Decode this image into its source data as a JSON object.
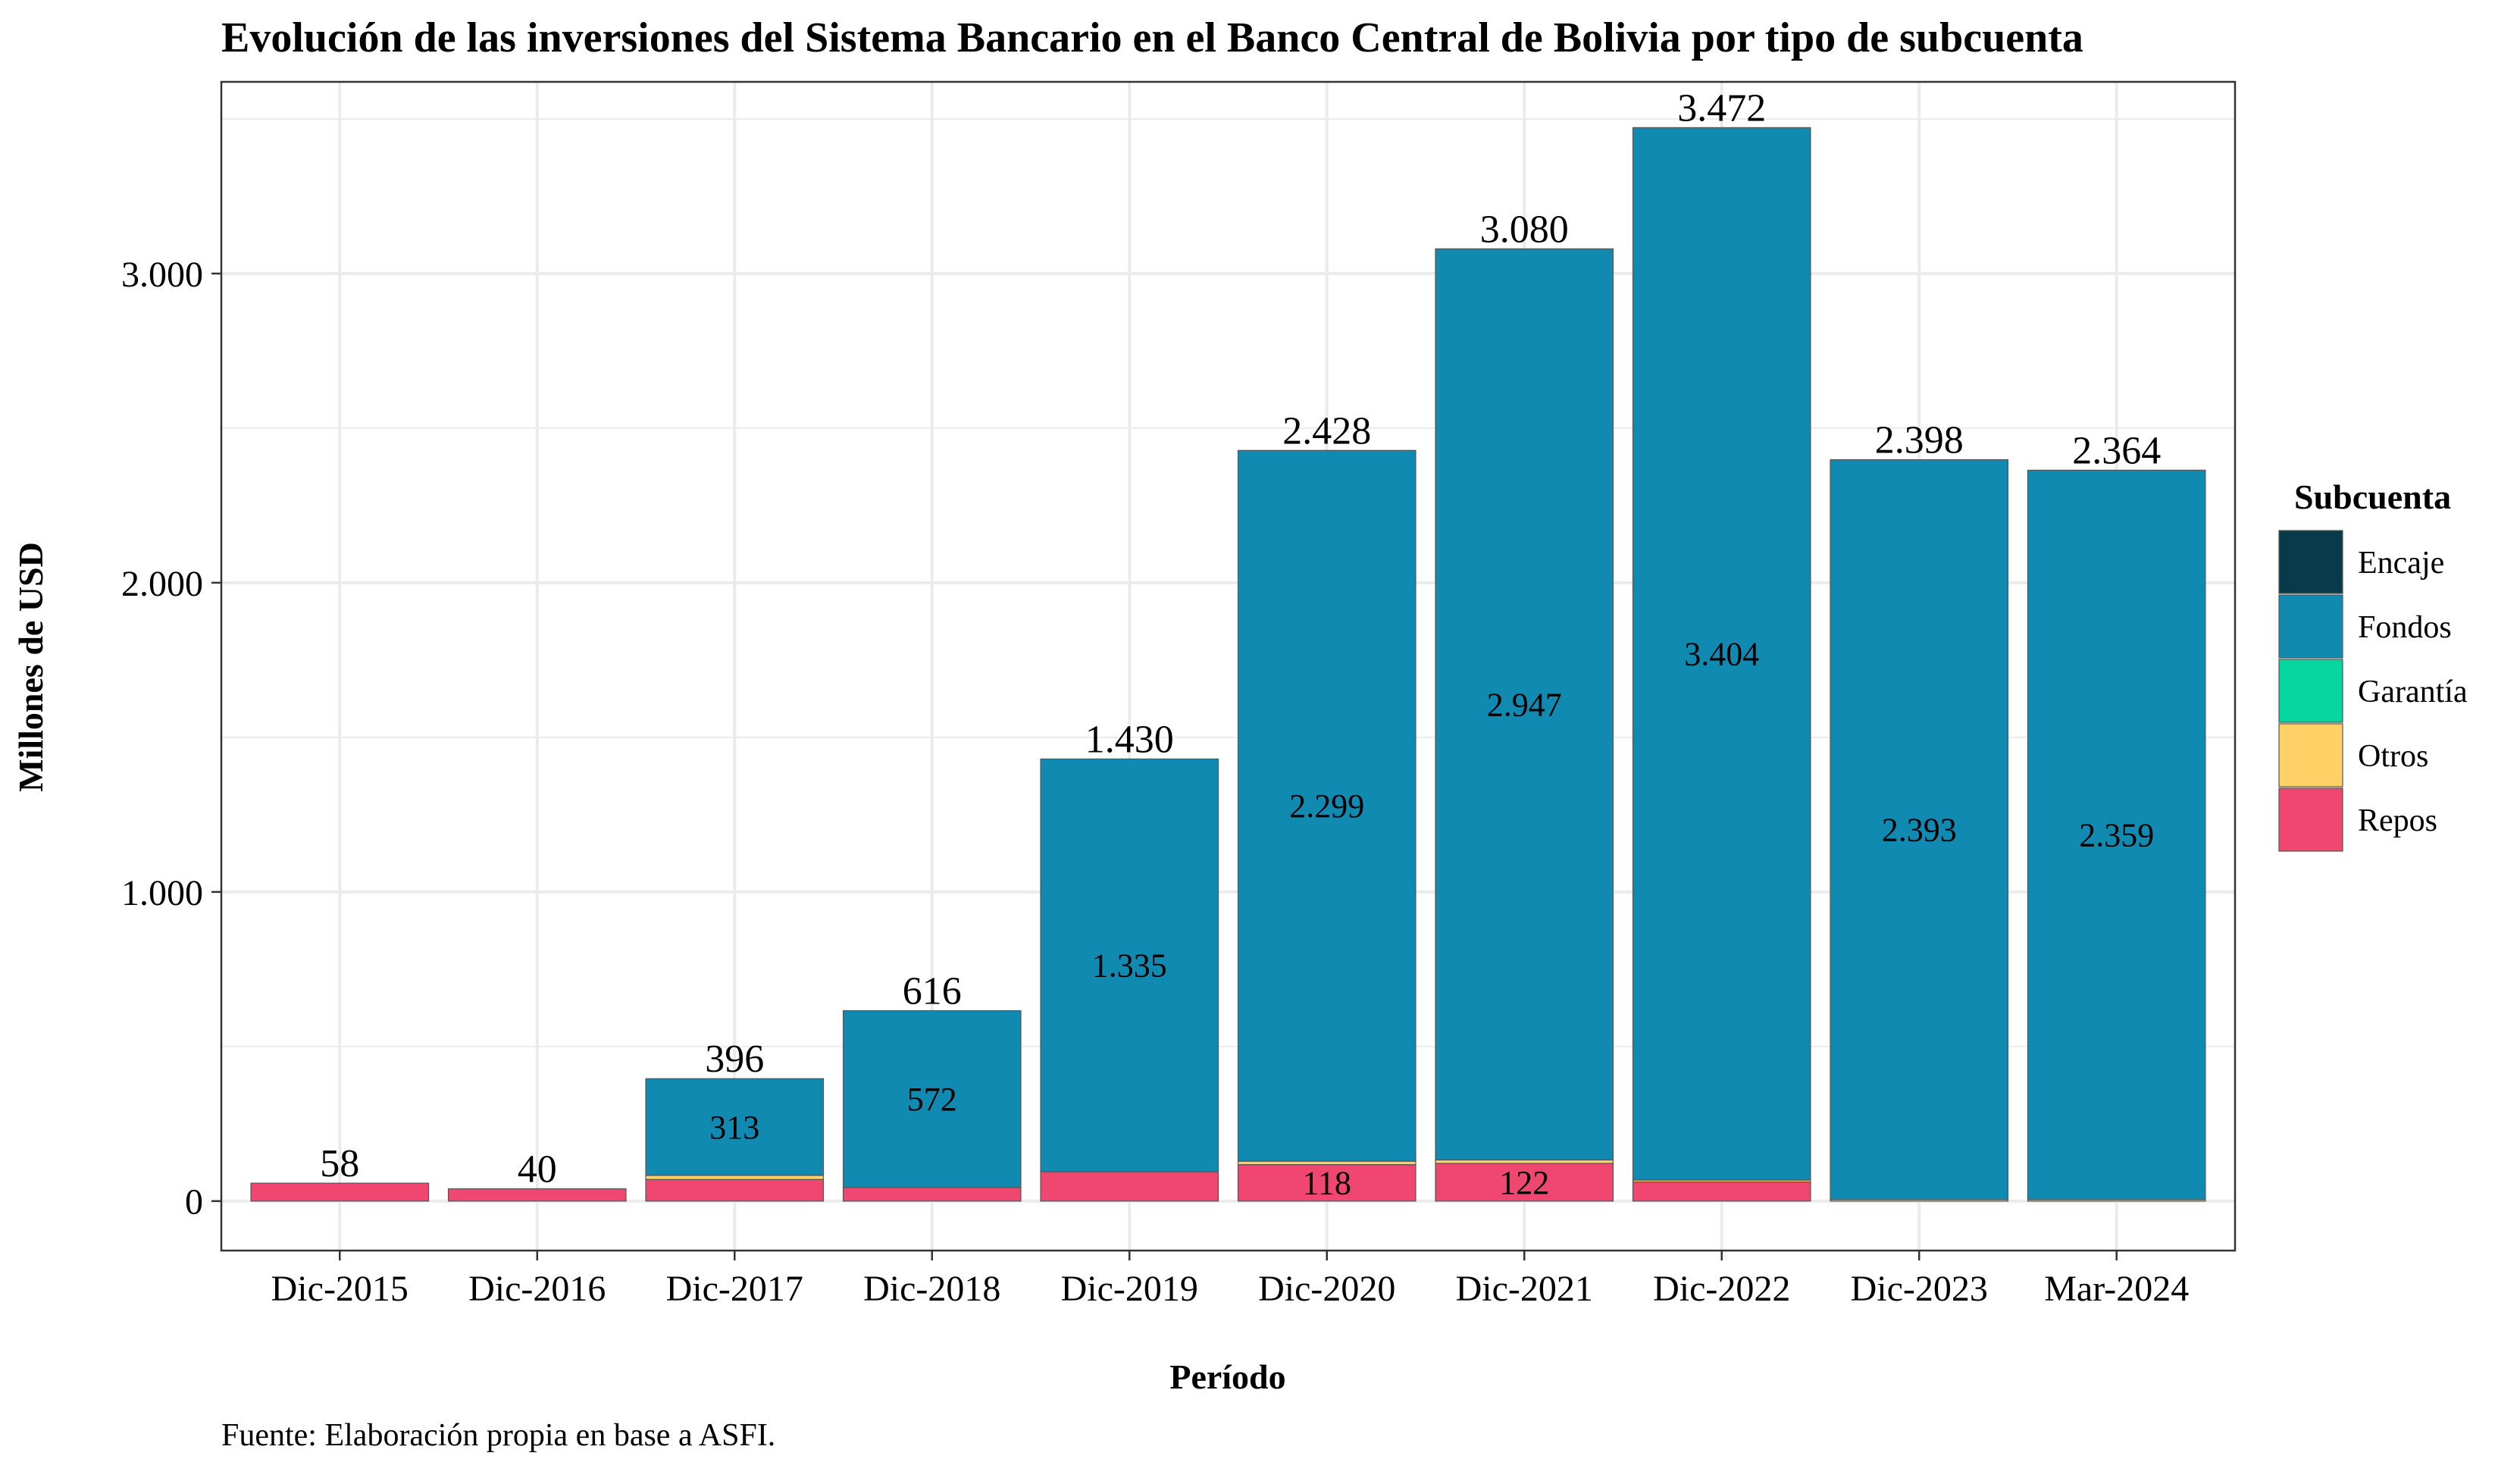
{
  "chart_data": {
    "type": "bar",
    "stacked": true,
    "title": "Evolución de las inversiones del Sistema Bancario en el Banco Central de Bolivia por tipo de subcuenta",
    "xlabel": "Período",
    "ylabel": "Millones de USD",
    "ylim": [
      -160,
      3620
    ],
    "yticks": [
      {
        "value": 0,
        "label": "0"
      },
      {
        "value": 1000,
        "label": "1.000"
      },
      {
        "value": 2000,
        "label": "2.000"
      },
      {
        "value": 3000,
        "label": "3.000"
      }
    ],
    "y_minor_ticks": [
      500,
      1500,
      2500,
      3500
    ],
    "grid": true,
    "legend_position": "right",
    "legend_title": "Subcuenta",
    "categories": [
      "Dic-2015",
      "Dic-2016",
      "Dic-2017",
      "Dic-2018",
      "Dic-2019",
      "Dic-2020",
      "Dic-2021",
      "Dic-2022",
      "Dic-2023",
      "Mar-2024"
    ],
    "series": [
      {
        "name": "Repos",
        "color": "#EF476F",
        "values": [
          58,
          40,
          70,
          44,
          95,
          118,
          122,
          62,
          0,
          0
        ]
      },
      {
        "name": "Otros",
        "color": "#FFD166",
        "values": [
          0,
          0,
          13,
          0,
          0,
          11,
          11,
          6,
          5,
          5
        ]
      },
      {
        "name": "Garantía",
        "color": "#06D6A0",
        "values": [
          0,
          0,
          0,
          0,
          0,
          0,
          0,
          0,
          0,
          0
        ]
      },
      {
        "name": "Fondos",
        "color": "#118AB2",
        "values": [
          0,
          0,
          313,
          572,
          1335,
          2299,
          2947,
          3404,
          2393,
          2359
        ]
      },
      {
        "name": "Encaje",
        "color": "#073B4C",
        "values": [
          0,
          0,
          0,
          0,
          0,
          0,
          0,
          0,
          0,
          0
        ]
      }
    ],
    "legend_order": [
      "Encaje",
      "Fondos",
      "Garantía",
      "Otros",
      "Repos"
    ],
    "totals": [
      {
        "value": 58,
        "label": "58"
      },
      {
        "value": 40,
        "label": "40"
      },
      {
        "value": 396,
        "label": "396"
      },
      {
        "value": 616,
        "label": "616"
      },
      {
        "value": 1430,
        "label": "1.430"
      },
      {
        "value": 2428,
        "label": "2.428"
      },
      {
        "value": 3080,
        "label": "3.080"
      },
      {
        "value": 3472,
        "label": "3.472"
      },
      {
        "value": 2398,
        "label": "2.398"
      },
      {
        "value": 2364,
        "label": "2.364"
      }
    ],
    "segment_labels": [
      {
        "category": "Dic-2017",
        "series": "Fondos",
        "label": "313"
      },
      {
        "category": "Dic-2018",
        "series": "Fondos",
        "label": "572"
      },
      {
        "category": "Dic-2019",
        "series": "Fondos",
        "label": "1.335"
      },
      {
        "category": "Dic-2020",
        "series": "Fondos",
        "label": "2.299"
      },
      {
        "category": "Dic-2021",
        "series": "Fondos",
        "label": "2.947"
      },
      {
        "category": "Dic-2022",
        "series": "Fondos",
        "label": "3.404"
      },
      {
        "category": "Dic-2023",
        "series": "Fondos",
        "label": "2.393"
      },
      {
        "category": "Mar-2024",
        "series": "Fondos",
        "label": "2.359"
      },
      {
        "category": "Dic-2020",
        "series": "Repos",
        "label": "118"
      },
      {
        "category": "Dic-2021",
        "series": "Repos",
        "label": "122"
      }
    ]
  },
  "source_note": "Fuente: Elaboración propia en base a ASFI."
}
